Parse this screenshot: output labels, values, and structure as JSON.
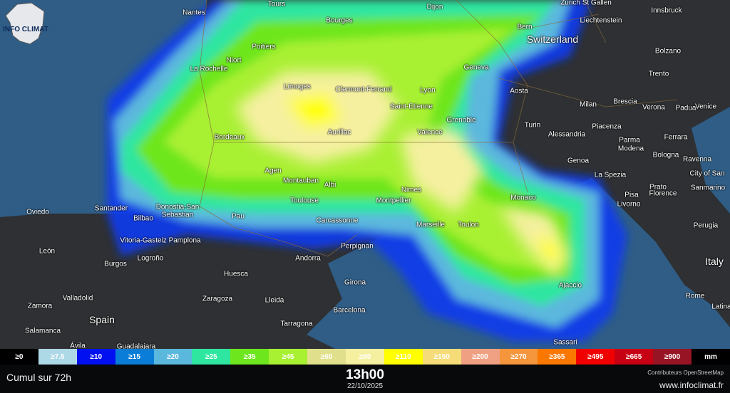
{
  "logo": {
    "text": "INFO CLIMAT"
  },
  "map": {
    "colors": {
      "sea": "#2f5d86",
      "land": "#2e3033"
    },
    "cities": [
      {
        "name": "Nantes"
      },
      {
        "name": "Tours"
      },
      {
        "name": "Bourges"
      },
      {
        "name": "Dijon"
      },
      {
        "name": "Zurich St Gallen"
      },
      {
        "name": "Innsbruck"
      },
      {
        "name": "Bern"
      },
      {
        "name": "Liechtenstein"
      },
      {
        "name": "Switzerland"
      },
      {
        "name": "Niort"
      },
      {
        "name": "Poitiers"
      },
      {
        "name": "La Rochelle"
      },
      {
        "name": "Bolzano"
      },
      {
        "name": "Geneva"
      },
      {
        "name": "Trento"
      },
      {
        "name": "Limoges"
      },
      {
        "name": "Clermont-Ferrand"
      },
      {
        "name": "Lyon"
      },
      {
        "name": "Aosta"
      },
      {
        "name": "Milan"
      },
      {
        "name": "Brescia"
      },
      {
        "name": "Verona"
      },
      {
        "name": "Padua"
      },
      {
        "name": "Venice"
      },
      {
        "name": "Saint-Etienne"
      },
      {
        "name": "Grenoble"
      },
      {
        "name": "Turin"
      },
      {
        "name": "Piacenza"
      },
      {
        "name": "Bordeaux"
      },
      {
        "name": "Aurillac"
      },
      {
        "name": "Valence"
      },
      {
        "name": "Alessandria"
      },
      {
        "name": "Parma"
      },
      {
        "name": "Ferrara"
      },
      {
        "name": "Modena"
      },
      {
        "name": "Bologna"
      },
      {
        "name": "Ravenna"
      },
      {
        "name": "Genoa"
      },
      {
        "name": "La Spezia"
      },
      {
        "name": "City of San"
      },
      {
        "name": "Agen"
      },
      {
        "name": "Montauban"
      },
      {
        "name": "Albi"
      },
      {
        "name": "Nimes"
      },
      {
        "name": "Prato"
      },
      {
        "name": "Florence"
      },
      {
        "name": "Sanmarino"
      },
      {
        "name": "Monaco"
      },
      {
        "name": "Pisa"
      },
      {
        "name": "Livorno"
      },
      {
        "name": "Toulouse"
      },
      {
        "name": "Montpellier"
      },
      {
        "name": "Oviedo"
      },
      {
        "name": "Santander"
      },
      {
        "name": "Donostia-San"
      },
      {
        "name": "Sebastian"
      },
      {
        "name": "Bilbao"
      },
      {
        "name": "Pau"
      },
      {
        "name": "Carcassonne"
      },
      {
        "name": "Marseille"
      },
      {
        "name": "Toulon"
      },
      {
        "name": "Perugia"
      },
      {
        "name": "Vitoria-Gasteiz Pamplona"
      },
      {
        "name": "Perpignan"
      },
      {
        "name": "León"
      },
      {
        "name": "Andorra"
      },
      {
        "name": "Logroño"
      },
      {
        "name": "Italy"
      },
      {
        "name": "Burgos"
      },
      {
        "name": "Huesca"
      },
      {
        "name": "Ajaccio"
      },
      {
        "name": "Girona"
      },
      {
        "name": "Rome"
      },
      {
        "name": "Valladolid"
      },
      {
        "name": "Zaragoza"
      },
      {
        "name": "Lleida"
      },
      {
        "name": "Zamora"
      },
      {
        "name": "Latina"
      },
      {
        "name": "Spain"
      },
      {
        "name": "Barcelona"
      },
      {
        "name": "Tarragona"
      },
      {
        "name": "Salamanca"
      },
      {
        "name": "Sassari"
      },
      {
        "name": "Ávila"
      },
      {
        "name": "Guadalajara"
      }
    ]
  },
  "legend": {
    "items": [
      {
        "label": "≥0",
        "color": "#000000"
      },
      {
        "label": "≥7.5",
        "color": "#add8e6"
      },
      {
        "label": "≥10",
        "color": "#0010f0"
      },
      {
        "label": "≥15",
        "color": "#0a7dd8"
      },
      {
        "label": "≥20",
        "color": "#5bb8dd"
      },
      {
        "label": "≥25",
        "color": "#2ee6a0"
      },
      {
        "label": "≥35",
        "color": "#6ee61e"
      },
      {
        "label": "≥45",
        "color": "#a8f032"
      },
      {
        "label": "≥60",
        "color": "#e0e08c"
      },
      {
        "label": "≥80",
        "color": "#f5f0a0"
      },
      {
        "label": "≥110",
        "color": "#ffff00"
      },
      {
        "label": "≥150",
        "color": "#f5dc78"
      },
      {
        "label": "≥200",
        "color": "#f0a082"
      },
      {
        "label": "≥270",
        "color": "#f5963c"
      },
      {
        "label": "≥365",
        "color": "#fa7800"
      },
      {
        "label": "≥495",
        "color": "#f00000"
      },
      {
        "label": "≥665",
        "color": "#c80014"
      },
      {
        "label": "≥900",
        "color": "#961423"
      },
      {
        "label": "mm",
        "color": "#000000"
      }
    ]
  },
  "footer": {
    "title": "Cumul sur 72h",
    "time": "13h00",
    "date": "22/10/2025",
    "attribution": "Contributeurs OpenStreetMap",
    "url": "www.infoclimat.fr"
  }
}
